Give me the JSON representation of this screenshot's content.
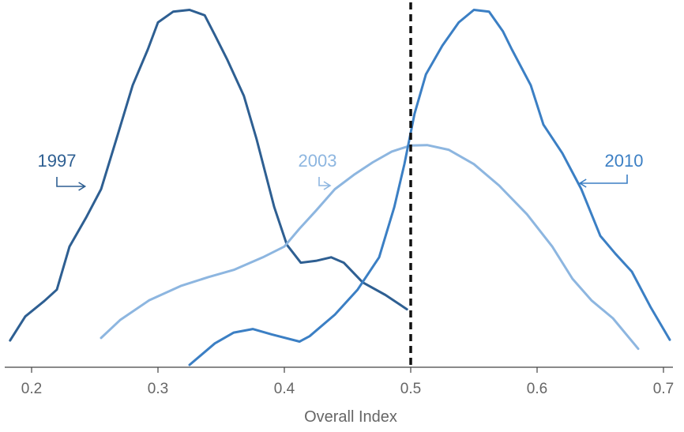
{
  "chart_data": {
    "type": "line",
    "xlabel": "Overall Index",
    "ylabel": "",
    "xlim": [
      0.18,
      0.705
    ],
    "ylim": [
      0,
      1
    ],
    "xticks": [
      "0.2",
      "0.3",
      "0.4",
      "0.5",
      "0.6",
      "0.7"
    ],
    "grid": false,
    "reference_line": {
      "x": 0.5,
      "style": "dashed",
      "color": "#111111"
    },
    "series": [
      {
        "name": "1997",
        "color": "#2e5f92",
        "points": [
          [
            0.183,
            0.068
          ],
          [
            0.195,
            0.135
          ],
          [
            0.21,
            0.178
          ],
          [
            0.22,
            0.21
          ],
          [
            0.23,
            0.33
          ],
          [
            0.243,
            0.41
          ],
          [
            0.255,
            0.49
          ],
          [
            0.268,
            0.64
          ],
          [
            0.28,
            0.78
          ],
          [
            0.292,
            0.88
          ],
          [
            0.3,
            0.955
          ],
          [
            0.312,
            0.985
          ],
          [
            0.325,
            0.99
          ],
          [
            0.337,
            0.975
          ],
          [
            0.345,
            0.92
          ],
          [
            0.355,
            0.85
          ],
          [
            0.368,
            0.75
          ],
          [
            0.378,
            0.63
          ],
          [
            0.392,
            0.44
          ],
          [
            0.402,
            0.335
          ],
          [
            0.413,
            0.285
          ],
          [
            0.425,
            0.29
          ],
          [
            0.437,
            0.3
          ],
          [
            0.447,
            0.285
          ],
          [
            0.462,
            0.23
          ],
          [
            0.48,
            0.195
          ],
          [
            0.497,
            0.155
          ]
        ]
      },
      {
        "name": "2003",
        "color": "#8db6e0",
        "points": [
          [
            0.255,
            0.075
          ],
          [
            0.27,
            0.125
          ],
          [
            0.293,
            0.18
          ],
          [
            0.318,
            0.22
          ],
          [
            0.34,
            0.245
          ],
          [
            0.36,
            0.265
          ],
          [
            0.383,
            0.3
          ],
          [
            0.4,
            0.33
          ],
          [
            0.412,
            0.38
          ],
          [
            0.425,
            0.43
          ],
          [
            0.44,
            0.49
          ],
          [
            0.455,
            0.53
          ],
          [
            0.47,
            0.565
          ],
          [
            0.485,
            0.595
          ],
          [
            0.5,
            0.612
          ],
          [
            0.513,
            0.613
          ],
          [
            0.53,
            0.6
          ],
          [
            0.55,
            0.56
          ],
          [
            0.57,
            0.5
          ],
          [
            0.592,
            0.42
          ],
          [
            0.612,
            0.33
          ],
          [
            0.628,
            0.24
          ],
          [
            0.643,
            0.18
          ],
          [
            0.66,
            0.13
          ],
          [
            0.68,
            0.045
          ]
        ]
      },
      {
        "name": "2010",
        "color": "#3b7fc4",
        "points": [
          [
            0.325,
            0.0
          ],
          [
            0.345,
            0.06
          ],
          [
            0.36,
            0.09
          ],
          [
            0.375,
            0.1
          ],
          [
            0.39,
            0.085
          ],
          [
            0.412,
            0.065
          ],
          [
            0.42,
            0.08
          ],
          [
            0.44,
            0.14
          ],
          [
            0.458,
            0.21
          ],
          [
            0.475,
            0.3
          ],
          [
            0.487,
            0.44
          ],
          [
            0.495,
            0.56
          ],
          [
            0.503,
            0.7
          ],
          [
            0.512,
            0.81
          ],
          [
            0.525,
            0.89
          ],
          [
            0.538,
            0.955
          ],
          [
            0.55,
            0.99
          ],
          [
            0.562,
            0.985
          ],
          [
            0.573,
            0.93
          ],
          [
            0.58,
            0.88
          ],
          [
            0.595,
            0.78
          ],
          [
            0.605,
            0.67
          ],
          [
            0.62,
            0.59
          ],
          [
            0.635,
            0.49
          ],
          [
            0.65,
            0.36
          ],
          [
            0.662,
            0.31
          ],
          [
            0.675,
            0.26
          ],
          [
            0.69,
            0.16
          ],
          [
            0.705,
            0.07
          ]
        ]
      }
    ],
    "annotations": [
      {
        "text": "1997",
        "series": "1997",
        "arrow_to": [
          0.246,
          0.44
        ]
      },
      {
        "text": "2003",
        "series": "2003",
        "arrow_to": [
          0.455,
          0.53
        ]
      },
      {
        "text": "2010",
        "series": "2010",
        "arrow_to": [
          0.632,
          0.46
        ]
      }
    ]
  }
}
